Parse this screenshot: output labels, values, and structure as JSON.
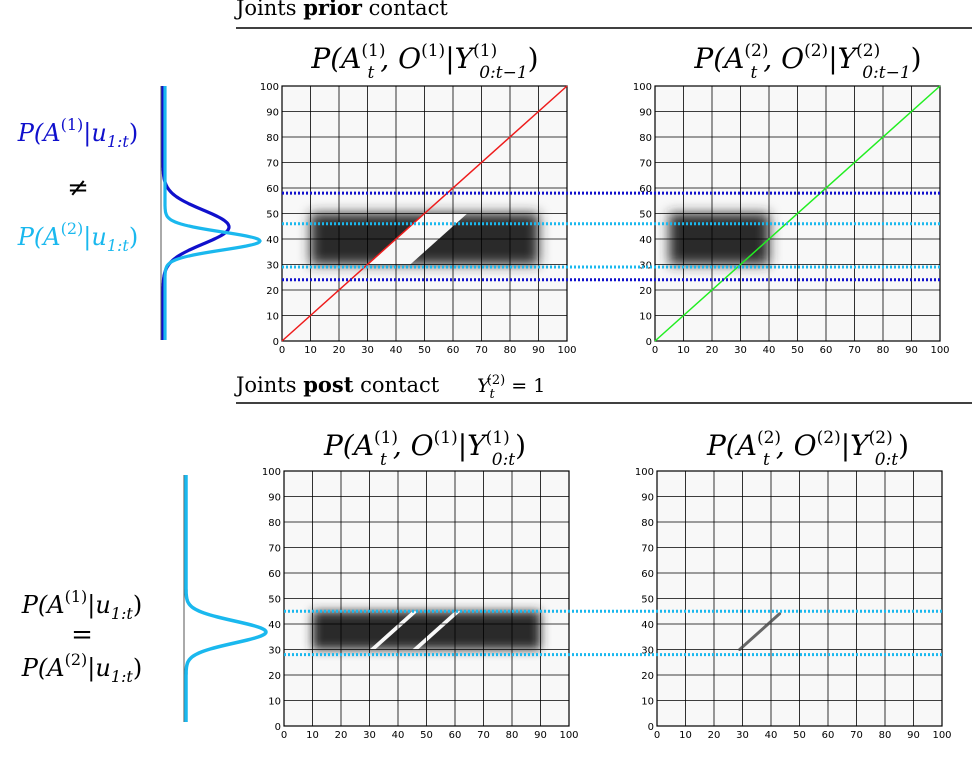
{
  "sections": {
    "prior_prefix": "Joints ",
    "prior_bold": "prior",
    "prior_suffix": " contact",
    "post_prefix": "Joints ",
    "post_bold": "post",
    "post_suffix": " contact",
    "post_condition": {
      "var": "Y",
      "sub": "t",
      "sup": "(2)",
      "rest": " = 1"
    }
  },
  "plot_titles": [
    {
      "p_open": "P(",
      "a": "A",
      "a_sub": "t",
      "a_sup": "(1)",
      "mid": ", O",
      "o_sup": "(1)",
      "bar": "|Y",
      "y_sub": "0:t−1",
      "y_sup": "(1)",
      "close": ")"
    },
    {
      "p_open": "P(",
      "a": "A",
      "a_sub": "t",
      "a_sup": "(2)",
      "mid": ", O",
      "o_sup": "(2)",
      "bar": "|Y",
      "y_sub": "0:t−1",
      "y_sup": "(2)",
      "close": ")"
    },
    {
      "p_open": "P(",
      "a": "A",
      "a_sub": "t",
      "a_sup": "(1)",
      "mid": ", O",
      "o_sup": "(1)",
      "bar": "|Y",
      "y_sub": "0:t",
      "y_sup": "(1)",
      "close": ")"
    },
    {
      "p_open": "P(",
      "a": "A",
      "a_sub": "t",
      "a_sup": "(2)",
      "mid": ", O",
      "o_sup": "(2)",
      "bar": "|Y",
      "y_sub": "0:t",
      "y_sup": "(2)",
      "close": ")"
    }
  ],
  "marginals": {
    "top_a": {
      "p": "P(A",
      "sup": "(1)",
      "bar": "|u",
      "sub": "1:t",
      "close": ")"
    },
    "top_neq": "≠",
    "top_b": {
      "p": "P(A",
      "sup": "(2)",
      "bar": "|u",
      "sub": "1:t",
      "close": ")"
    },
    "bot_a": {
      "p": "P(A",
      "sup": "(1)",
      "bar": "|u",
      "sub": "1:t",
      "close": ")"
    },
    "bot_eq": "=",
    "bot_b": {
      "p": "P(A",
      "sup": "(2)",
      "bar": "|u",
      "sub": "1:t",
      "close": ")"
    }
  },
  "colors": {
    "dark_blue": "#1010cc",
    "light_blue": "#1ab8ee",
    "red": "#ee1c1c",
    "green": "#22ee22",
    "axes_bg": "#f8f8f8",
    "grid": "#000000"
  },
  "chart_data": [
    {
      "type": "heatmap",
      "xlim": [
        0,
        100
      ],
      "ylim": [
        0,
        100
      ],
      "x_ticks": [
        0,
        10,
        20,
        30,
        40,
        50,
        60,
        70,
        80,
        90,
        100
      ],
      "y_ticks": [
        0,
        10,
        20,
        30,
        40,
        50,
        60,
        70,
        80,
        90,
        100
      ],
      "grid": true,
      "diagonal_line": {
        "color": "red",
        "from": [
          0,
          0
        ],
        "to": [
          100,
          100
        ]
      },
      "mass_region": {
        "x_range": [
          10,
          90
        ],
        "y_range": [
          30,
          50
        ],
        "hole_diagonal_offset": 15
      },
      "dashed_lines": [
        {
          "y": 58,
          "color": "dark_blue"
        },
        {
          "y": 46,
          "color": "light_blue"
        },
        {
          "y": 29,
          "color": "light_blue"
        },
        {
          "y": 24,
          "color": "dark_blue"
        }
      ]
    },
    {
      "type": "heatmap",
      "xlim": [
        0,
        100
      ],
      "ylim": [
        0,
        100
      ],
      "x_ticks": [
        0,
        10,
        20,
        30,
        40,
        50,
        60,
        70,
        80,
        90,
        100
      ],
      "y_ticks": [
        0,
        10,
        20,
        30,
        40,
        50,
        60,
        70,
        80,
        90,
        100
      ],
      "grid": true,
      "diagonal_line": {
        "color": "green",
        "from": [
          0,
          0
        ],
        "to": [
          100,
          100
        ]
      },
      "mass_region": {
        "x_range": [
          5,
          40
        ],
        "y_range": [
          30,
          50
        ]
      },
      "dashed_lines": [
        {
          "y": 58,
          "color": "dark_blue"
        },
        {
          "y": 46,
          "color": "light_blue"
        },
        {
          "y": 29,
          "color": "light_blue"
        },
        {
          "y": 24,
          "color": "dark_blue"
        }
      ]
    },
    {
      "type": "heatmap",
      "xlim": [
        0,
        100
      ],
      "ylim": [
        0,
        100
      ],
      "x_ticks": [
        0,
        10,
        20,
        30,
        40,
        50,
        60,
        70,
        80,
        90,
        100
      ],
      "y_ticks": [
        0,
        10,
        20,
        30,
        40,
        50,
        60,
        70,
        80,
        90,
        100
      ],
      "grid": true,
      "mass_region": {
        "x_range": [
          10,
          90
        ],
        "y_range": [
          30,
          45
        ],
        "diagonal_gaps": [
          30,
          45
        ]
      },
      "dashed_lines": [
        {
          "y": 45,
          "color": "light_blue"
        },
        {
          "y": 28,
          "color": "light_blue"
        }
      ]
    },
    {
      "type": "heatmap",
      "xlim": [
        0,
        100
      ],
      "ylim": [
        0,
        100
      ],
      "x_ticks": [
        0,
        10,
        20,
        30,
        40,
        50,
        60,
        70,
        80,
        90,
        100
      ],
      "y_ticks": [
        0,
        10,
        20,
        30,
        40,
        50,
        60,
        70,
        80,
        90,
        100
      ],
      "grid": true,
      "diagonal_segment": {
        "from": [
          29,
          30
        ],
        "to": [
          43,
          44
        ]
      },
      "dashed_lines": [
        {
          "y": 45,
          "color": "light_blue"
        },
        {
          "y": 28,
          "color": "light_blue"
        }
      ]
    }
  ]
}
